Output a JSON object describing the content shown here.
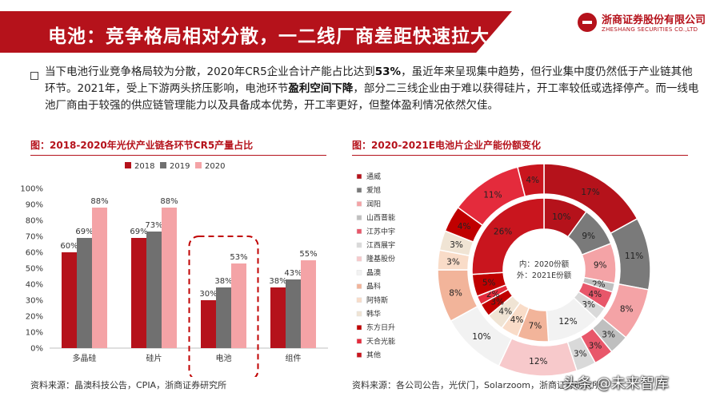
{
  "header": {
    "title": "电池：竞争格局相对分散，一二线厂商差距快速拉大",
    "logo_cn": "浙商证券股份有限公司",
    "logo_en": "ZHESHANG SECURITIES CO.,LTD",
    "brand_color": "#b5121b"
  },
  "summary": {
    "p1": "当下电池行业竞争格局较为分散，2020年CR5企业合计产能占比达到",
    "b1": "53%",
    "p2": "，虽近年来呈现集中趋势，但行业集中度仍然低于产业链其他环节。2021年，受上下游两头挤压影响，电池环节",
    "b2": "盈利空间下降",
    "p3": "，部分二三线企业由于难以获得硅片，开工率较低或选择停产。而一线电池厂商由于较强的供应链管理能力以及具备成本优势，开工率更好，但整体盈利情况依然欠佳。"
  },
  "left_chart": {
    "title": "图：2018-2020年光伏产业链各环节CR5产量占比",
    "source": "资料来源：晶澳科技公告，CPIA，浙商证券研究所"
  },
  "right_chart": {
    "title": "图：2020-2021E电池片企业产能份额变化",
    "source": "资料来源：各公司公告，光伏门，Solarzoom，浙商证券研究所",
    "center_line1": "内：2020份额",
    "center_line2": "外：2021E份额"
  },
  "watermark": "头条 @未来智库",
  "chart_data": [
    {
      "type": "bar",
      "categories": [
        "多晶硅",
        "硅片",
        "电池",
        "组件"
      ],
      "series": [
        {
          "name": "2018",
          "values": [
            60,
            69,
            30,
            38
          ],
          "color": "#b5121b"
        },
        {
          "name": "2019",
          "values": [
            69,
            73,
            38,
            43
          ],
          "color": "#707070"
        },
        {
          "name": "2020",
          "values": [
            88,
            88,
            53,
            55
          ],
          "color": "#f4a3a6"
        }
      ],
      "ylim": [
        0,
        100
      ],
      "yticks": [
        "0%",
        "10%",
        "20%",
        "30%",
        "40%",
        "50%",
        "60%",
        "70%",
        "80%",
        "90%",
        "100%"
      ],
      "grid": false,
      "legend": "top",
      "highlight": "电池"
    },
    {
      "type": "pie",
      "subtype": "concentric-donut",
      "legend": "left",
      "categories": [
        "通威",
        "爱旭",
        "润阳",
        "山西晋能",
        "江苏中宇",
        "江西展宇",
        "隆基股份",
        "晶澳",
        "晶科",
        "阿特斯",
        "韩华",
        "东方日升",
        "天合光能",
        "其他"
      ],
      "colors": [
        "#b5121b",
        "#7a7a7a",
        "#f4a3a6",
        "#bfbfbf",
        "#e8576a",
        "#d9d9d9",
        "#f7c9cb",
        "#f2f2f2",
        "#f2b49a",
        "#f9dcc8",
        "#f0e4d4",
        "#c00000",
        "#e42b3c",
        "#c9151e"
      ],
      "inner_2020": [
        10,
        9,
        9,
        2,
        4,
        3,
        0,
        12,
        7,
        4,
        4,
        3,
        2,
        5,
        26
      ],
      "inner_labels": [
        "10%",
        "9%",
        "9%",
        "2%",
        "4%",
        "3%",
        "",
        "12%",
        "7%",
        "4%",
        "4%",
        "3%",
        "2%",
        "5%",
        "26%"
      ],
      "inner_series": [
        "通威",
        "爱旭",
        "润阳",
        "山西晋能",
        "江苏中宇",
        "江西展宇",
        "隆基股份",
        "晶澳",
        "晶科",
        "阿特斯",
        "韩华",
        "东方日升",
        "天合光能",
        "其他_a",
        "其他"
      ],
      "outer_2021E": [
        17,
        11,
        8,
        3,
        3,
        3,
        12,
        10,
        8,
        3,
        3,
        4,
        11,
        4
      ],
      "outer_labels": [
        "17%",
        "11%",
        "8%",
        "3%",
        "3%",
        "3%",
        "12%",
        "10%",
        "8%",
        "3%",
        "3%",
        "4%",
        "11%",
        "4%"
      ]
    }
  ]
}
